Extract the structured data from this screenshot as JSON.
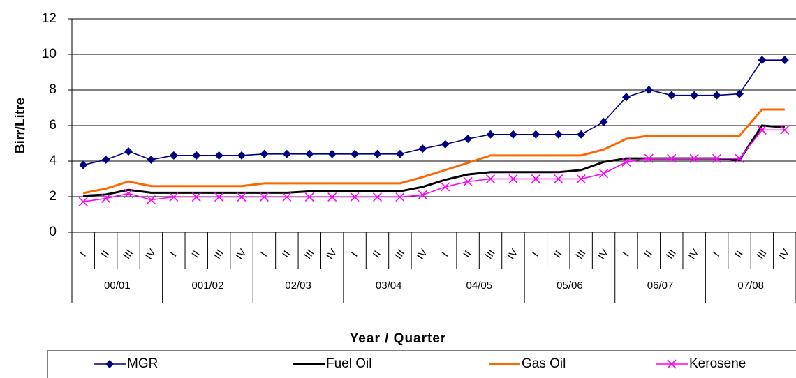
{
  "chart_data": {
    "type": "line",
    "y_label": "Birr/Litre",
    "x_label": "Year / Quarter",
    "categories": [
      "I",
      "II",
      "III",
      "IV",
      "I",
      "II",
      "III",
      "IV",
      "I",
      "II",
      "III",
      "IV",
      "I",
      "II",
      "III",
      "IV",
      "I",
      "II",
      "III",
      "IV",
      "I",
      "II",
      "III",
      "IV",
      "I",
      "II",
      "III",
      "IV",
      "I",
      "II",
      "III",
      "IV"
    ],
    "groups": [
      "00/01",
      "001/02",
      "02/03",
      "03/04",
      "04/05",
      "05/06",
      "06/07",
      "07/08"
    ],
    "series": [
      {
        "name": "MGR",
        "color": "#000080",
        "marker": "diamond",
        "values": [
          3.78,
          4.08,
          4.55,
          4.08,
          4.32,
          4.32,
          4.32,
          4.32,
          4.4,
          4.4,
          4.4,
          4.4,
          4.4,
          4.4,
          4.4,
          4.7,
          4.95,
          5.25,
          5.5,
          5.5,
          5.5,
          5.5,
          5.5,
          6.2,
          7.6,
          8.0,
          7.7,
          7.7,
          7.7,
          7.78,
          9.68,
          9.68
        ]
      },
      {
        "name": "Fuel Oil",
        "color": "#000000",
        "marker": "none",
        "values": [
          2.05,
          2.12,
          2.38,
          2.22,
          2.22,
          2.22,
          2.22,
          2.22,
          2.22,
          2.22,
          2.3,
          2.3,
          2.3,
          2.3,
          2.3,
          2.55,
          2.95,
          3.25,
          3.38,
          3.38,
          3.38,
          3.38,
          3.5,
          3.95,
          4.15,
          4.15,
          4.15,
          4.15,
          4.15,
          4.05,
          6.0,
          5.9
        ]
      },
      {
        "name": "Gas Oil",
        "color": "#ff6600",
        "marker": "none",
        "values": [
          2.2,
          2.45,
          2.85,
          2.6,
          2.6,
          2.6,
          2.6,
          2.6,
          2.75,
          2.75,
          2.75,
          2.75,
          2.75,
          2.75,
          2.75,
          3.1,
          3.5,
          3.9,
          4.32,
          4.32,
          4.32,
          4.32,
          4.32,
          4.65,
          5.25,
          5.42,
          5.42,
          5.42,
          5.42,
          5.42,
          6.9,
          6.9
        ]
      },
      {
        "name": "Kerosene",
        "color": "#ff00ff",
        "marker": "x",
        "values": [
          1.72,
          1.9,
          2.18,
          1.82,
          1.98,
          1.98,
          1.98,
          1.98,
          1.98,
          1.98,
          1.98,
          1.98,
          1.98,
          1.98,
          1.98,
          2.1,
          2.55,
          2.85,
          3.0,
          3.0,
          3.0,
          3.0,
          3.0,
          3.3,
          3.95,
          4.15,
          4.15,
          4.15,
          4.15,
          4.15,
          5.75,
          5.75
        ]
      }
    ],
    "ylim": [
      0,
      12
    ],
    "yticks": [
      0,
      2,
      4,
      6,
      8,
      10,
      12
    ],
    "grid": true,
    "legend": "bottom"
  }
}
